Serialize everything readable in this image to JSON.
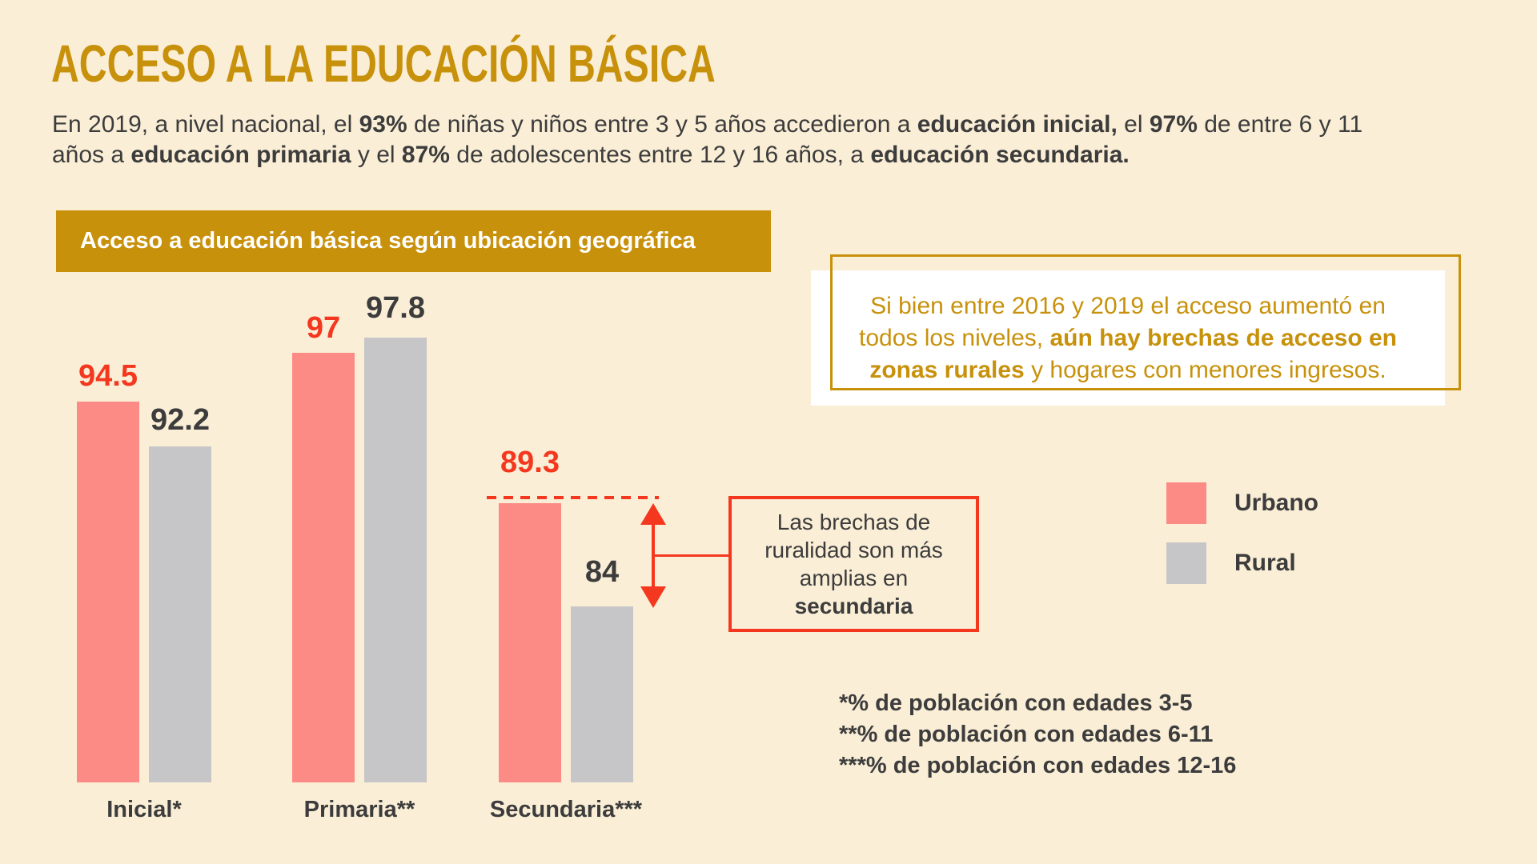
{
  "page": {
    "background": "#FAEED6"
  },
  "colors": {
    "gold": "#C8910B",
    "red": "#F4381F",
    "dark": "#3C3C3C",
    "pink_urbano": "#FC8B85",
    "gray_rural": "#C6C6C8",
    "white": "#FFFFFF"
  },
  "header": {
    "title": "ACCESO A LA EDUCACIÓN BÁSICA",
    "intro_lines": [
      [
        {
          "text": "En 2019, a nivel nacional, el ",
          "bold": false
        },
        {
          "text": "93%",
          "bold": true
        },
        {
          "text": " de niñas y niños entre 3 y 5 años accedieron a ",
          "bold": false
        },
        {
          "text": "educación inicial,",
          "bold": true
        },
        {
          "text": " el ",
          "bold": false
        },
        {
          "text": "97%",
          "bold": true
        },
        {
          "text": " de entre 6 y 11",
          "bold": false
        }
      ],
      [
        {
          "text": "años a ",
          "bold": false
        },
        {
          "text": "educación primaria",
          "bold": true
        },
        {
          "text": " y el ",
          "bold": false
        },
        {
          "text": "87%",
          "bold": true
        },
        {
          "text": " de adolescentes entre 12 y 16 años, a ",
          "bold": false
        },
        {
          "text": "educación secundaria.",
          "bold": true
        }
      ]
    ]
  },
  "chart_data": {
    "type": "bar",
    "title": "Acceso a educación básica según ubicación geográfica",
    "categories": [
      "Inicial*",
      "Primaria**",
      "Secundaria***"
    ],
    "series": [
      {
        "name": "Urbano",
        "color": "#FC8B85",
        "label_color": "#F4381F",
        "values": [
          94.5,
          97,
          89.3
        ]
      },
      {
        "name": "Rural",
        "color": "#C6C6C8",
        "label_color": "#3C3C3C",
        "values": [
          92.2,
          97.8,
          84
        ]
      }
    ],
    "unit": "%",
    "ylim": [
      75,
      100
    ],
    "grid": false,
    "value_labels": "above-bars",
    "legend_position": "right",
    "annotations": {
      "dashed_reference_value": 89.3,
      "gap_note_lines": [
        [
          {
            "text": "Las brechas de",
            "bold": false
          }
        ],
        [
          {
            "text": "ruralidad son más",
            "bold": false
          }
        ],
        [
          {
            "text": "amplias en",
            "bold": false
          }
        ],
        [
          {
            "text": "secundaria",
            "bold": true
          }
        ]
      ]
    }
  },
  "callout": {
    "border_color": "#C8910B",
    "text_color": "#C8910B",
    "lines": [
      [
        {
          "text": "Si bien entre 2016 y 2019 el acceso aumentó en",
          "bold": false
        }
      ],
      [
        {
          "text": "todos los niveles, ",
          "bold": false
        },
        {
          "text": "aún hay brechas de acceso en",
          "bold": true
        }
      ],
      [
        {
          "text": "zonas rurales",
          "bold": true
        },
        {
          "text": " y hogares con menores ingresos.",
          "bold": false
        }
      ]
    ]
  },
  "legend": {
    "items": [
      {
        "label": "Urbano",
        "color": "#FC8B85"
      },
      {
        "label": "Rural",
        "color": "#C6C6C8"
      }
    ]
  },
  "footnotes": [
    "*% de población con edades 3-5",
    "**% de población con edades 6-11",
    "***% de población con edades 12-16"
  ]
}
